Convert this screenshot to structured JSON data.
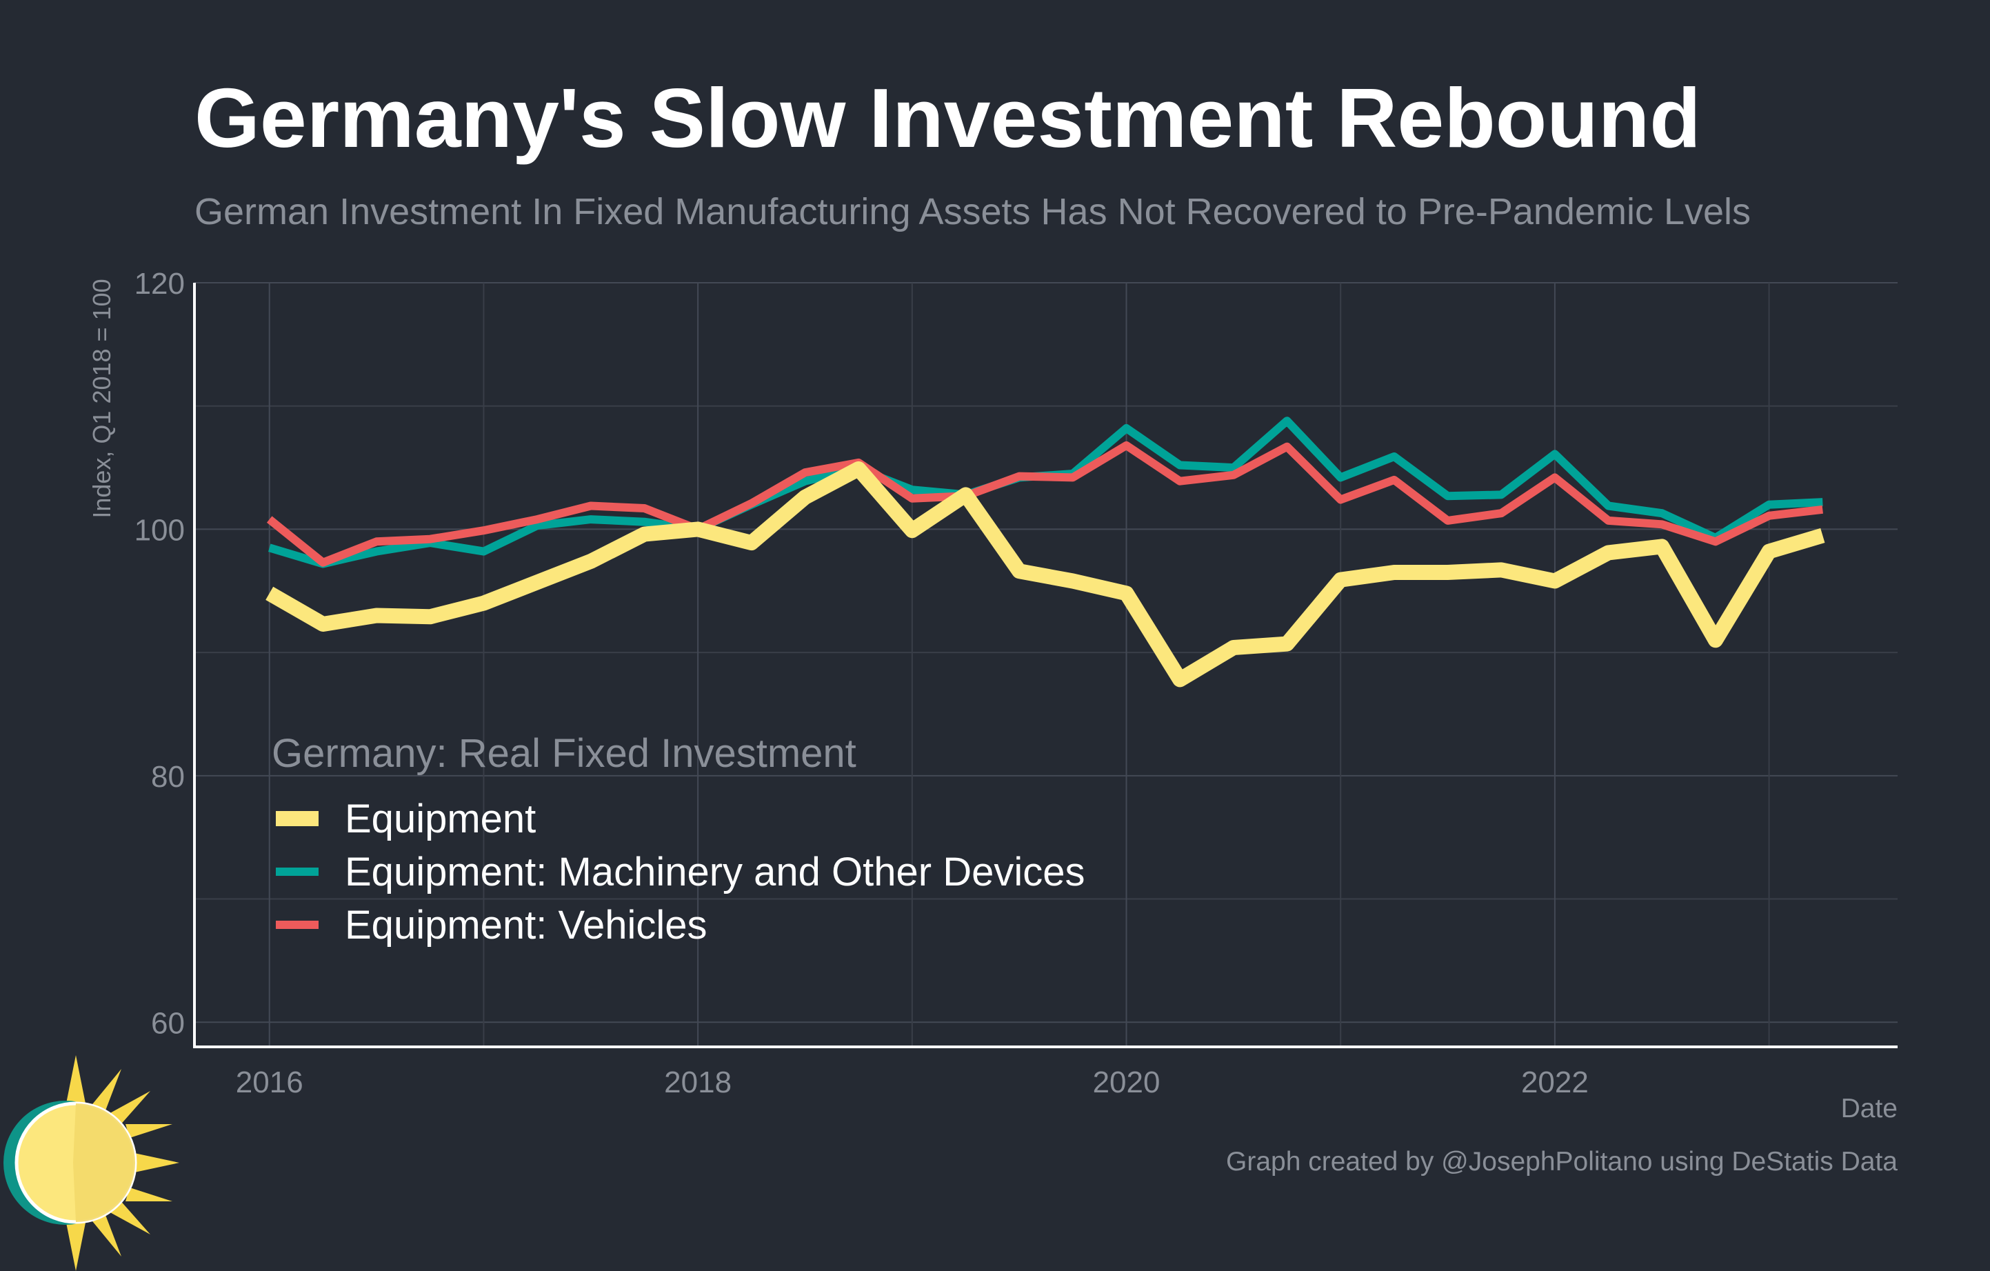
{
  "title": "Germany's Slow Investment Rebound",
  "subtitle": "German Investment In Fixed Manufacturing Assets Has Not Recovered to Pre-Pandemic Lvels",
  "credit": "Graph created by @JosephPolitano using DeStatis Data",
  "logo": "sun-logo-icon",
  "chart_data": {
    "type": "line",
    "xlabel": "Date",
    "ylabel": "Index, Q1 2018 = 100",
    "ylim": [
      58,
      120
    ],
    "xlim": [
      2015.65,
      2023.6
    ],
    "x_ticks": [
      2016,
      2018,
      2020,
      2022
    ],
    "y_ticks": [
      60,
      80,
      100,
      120
    ],
    "grid": true,
    "legend_title": "Germany: Real Fixed Investment",
    "legend_position": "bottom-left",
    "x": [
      2016.0,
      2016.25,
      2016.5,
      2016.75,
      2017.0,
      2017.25,
      2017.5,
      2017.75,
      2018.0,
      2018.25,
      2018.5,
      2018.75,
      2019.0,
      2019.25,
      2019.5,
      2019.75,
      2020.0,
      2020.25,
      2020.5,
      2020.75,
      2021.0,
      2021.25,
      2021.5,
      2021.75,
      2022.0,
      2022.25,
      2022.5,
      2022.75,
      2023.0,
      2023.25
    ],
    "series": [
      {
        "name": "Equipment",
        "color": "#fce77d",
        "values": [
          94.8,
          92.3,
          93.0,
          92.9,
          94.0,
          95.7,
          97.4,
          99.6,
          100.0,
          98.9,
          102.6,
          104.9,
          99.9,
          102.8,
          96.6,
          95.8,
          94.8,
          87.8,
          90.4,
          90.7,
          95.9,
          96.5,
          96.5,
          96.7,
          95.8,
          98.1,
          98.6,
          91.0,
          98.2,
          99.5
        ]
      },
      {
        "name": "Equipment: Machinery and Other Devices",
        "color": "#00a398",
        "values": [
          98.5,
          97.2,
          98.2,
          98.9,
          98.2,
          100.3,
          100.8,
          100.6,
          100.0,
          102.0,
          103.9,
          104.9,
          103.2,
          102.8,
          104.2,
          104.5,
          108.2,
          105.2,
          105.0,
          108.8,
          104.2,
          105.9,
          102.7,
          102.8,
          106.1,
          101.9,
          101.3,
          99.3,
          102.0,
          102.2
        ]
      },
      {
        "name": "Equipment: Vehicles",
        "color": "#ed5b5b",
        "values": [
          100.8,
          97.3,
          99.0,
          99.2,
          99.9,
          100.8,
          101.9,
          101.7,
          100.0,
          102.1,
          104.6,
          105.4,
          102.5,
          102.7,
          104.3,
          104.2,
          106.8,
          103.9,
          104.4,
          106.7,
          102.4,
          104.0,
          100.7,
          101.3,
          104.2,
          100.7,
          100.4,
          99.0,
          101.1,
          101.6
        ]
      }
    ]
  }
}
